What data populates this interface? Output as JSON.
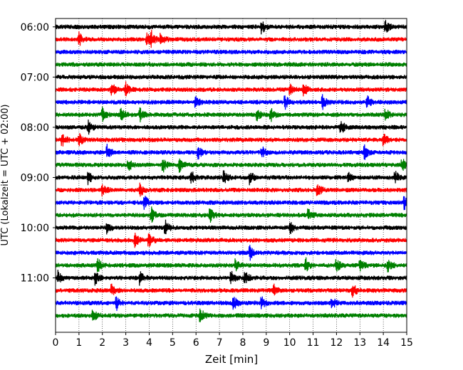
{
  "chart_data": {
    "type": "line",
    "title": "",
    "xlabel": "Zeit  [min]",
    "ylabel": "UTC (Lokalzeit = UTC + 02:00)",
    "xlim": [
      0,
      15
    ],
    "xticks": [
      0,
      1,
      2,
      3,
      4,
      5,
      6,
      7,
      8,
      9,
      10,
      11,
      12,
      13,
      14,
      15
    ],
    "xgrid": "dotted vertical lines at each minute",
    "ylim": [
      "05:50",
      "12:05"
    ],
    "yticks": [
      "06:00",
      "07:00",
      "08:00",
      "09:00",
      "10:00",
      "11:00"
    ],
    "trace_interval_min": 15,
    "trace_colors": [
      "#000000",
      "#ff0000",
      "#0000ff",
      "#008000"
    ],
    "traces": [
      {
        "start": "06:00",
        "events_min": [
          8.8,
          14.1
        ]
      },
      {
        "start": "06:15",
        "events_min": [
          1.0,
          3.9,
          4.1,
          4.5
        ]
      },
      {
        "start": "06:30",
        "events_min": []
      },
      {
        "start": "06:45",
        "events_min": []
      },
      {
        "start": "07:00",
        "events_min": []
      },
      {
        "start": "07:15",
        "events_min": [
          2.4,
          3.0,
          10.0,
          10.6
        ]
      },
      {
        "start": "07:30",
        "events_min": [
          6.0,
          9.8,
          11.4,
          13.3
        ]
      },
      {
        "start": "07:45",
        "events_min": [
          2.0,
          2.8,
          3.6,
          8.6,
          9.2,
          14.1
        ]
      },
      {
        "start": "08:00",
        "events_min": [
          1.4,
          12.2
        ]
      },
      {
        "start": "08:15",
        "events_min": [
          0.3,
          1.0,
          14.0
        ]
      },
      {
        "start": "08:30",
        "events_min": [
          2.2,
          6.1,
          8.8,
          13.2
        ]
      },
      {
        "start": "08:45",
        "events_min": [
          3.1,
          4.6,
          5.3,
          14.8
        ]
      },
      {
        "start": "09:00",
        "events_min": [
          1.4,
          5.8,
          7.2,
          8.3,
          12.5,
          14.5
        ]
      },
      {
        "start": "09:15",
        "events_min": [
          2.0,
          3.6,
          11.2
        ]
      },
      {
        "start": "09:30",
        "events_min": [
          3.8,
          14.9
        ]
      },
      {
        "start": "09:45",
        "events_min": [
          4.1,
          6.6,
          10.8
        ]
      },
      {
        "start": "10:00",
        "events_min": [
          2.2,
          4.7,
          10.0
        ]
      },
      {
        "start": "10:15",
        "events_min": [
          3.4,
          4.0
        ]
      },
      {
        "start": "10:30",
        "events_min": [
          8.3
        ]
      },
      {
        "start": "10:45",
        "events_min": [
          1.8,
          7.7,
          10.7,
          12.0,
          13.0,
          14.2
        ]
      },
      {
        "start": "11:00",
        "events_min": [
          0.1,
          1.7,
          3.6,
          7.5,
          8.1
        ]
      },
      {
        "start": "11:15",
        "events_min": [
          2.4,
          9.3,
          12.7
        ]
      },
      {
        "start": "11:30",
        "events_min": [
          2.6,
          7.6,
          8.8,
          11.8
        ]
      },
      {
        "start": "11:45",
        "events_min": [
          1.6,
          6.2
        ]
      }
    ]
  }
}
